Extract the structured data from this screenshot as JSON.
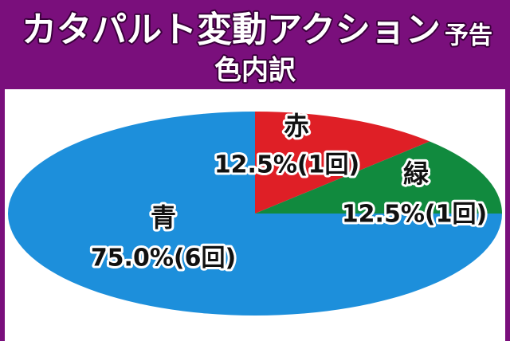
{
  "chart_data": {
    "type": "pie",
    "title": "カタパルト変動アクション",
    "title_suffix": "予告",
    "subtitle": "色内訳",
    "categories": [
      "赤",
      "緑",
      "青"
    ],
    "values": [
      12.5,
      12.5,
      75.0
    ],
    "value_labels": [
      "12.5%(1回)",
      "12.5%(1回)",
      "75.0%(6回)"
    ],
    "colors": [
      "#df1f26",
      "#118a3e",
      "#1d8fdb"
    ]
  }
}
